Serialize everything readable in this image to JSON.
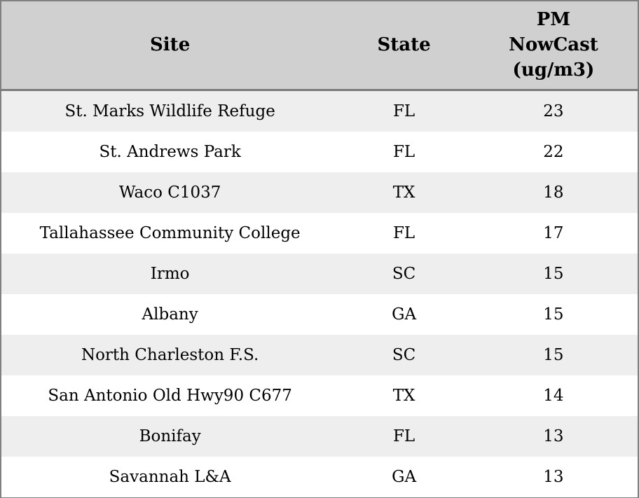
{
  "table": {
    "columns": [
      {
        "id": "site",
        "label": "Site"
      },
      {
        "id": "state",
        "label": "State"
      },
      {
        "id": "pm",
        "label": "PM\nNowCast\n(ug/m3)"
      }
    ],
    "rows": [
      {
        "site": "St. Marks Wildlife Refuge",
        "state": "FL",
        "pm": "23"
      },
      {
        "site": "St. Andrews Park",
        "state": "FL",
        "pm": "22"
      },
      {
        "site": "Waco C1037",
        "state": "TX",
        "pm": "18"
      },
      {
        "site": "Tallahassee Community College",
        "state": "FL",
        "pm": "17"
      },
      {
        "site": "Irmo",
        "state": "SC",
        "pm": "15"
      },
      {
        "site": "Albany",
        "state": "GA",
        "pm": "15"
      },
      {
        "site": "North Charleston F.S.",
        "state": "SC",
        "pm": "15"
      },
      {
        "site": "San Antonio Old Hwy90 C677",
        "state": "TX",
        "pm": "14"
      },
      {
        "site": "Bonifay",
        "state": "FL",
        "pm": "13"
      },
      {
        "site": "Savannah L&A",
        "state": "GA",
        "pm": "13"
      }
    ],
    "colors": {
      "header_bg": "#d0d0d0",
      "row_stripe_bg": "#eeeeee",
      "row_bg": "#ffffff",
      "border": "#808080",
      "header_rule": "#7a7a7a",
      "text": "#000000"
    }
  }
}
